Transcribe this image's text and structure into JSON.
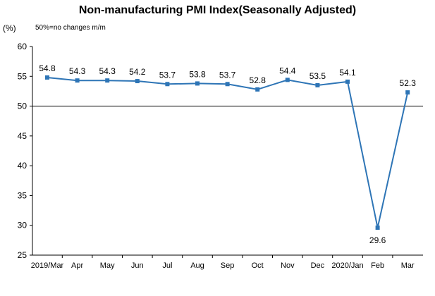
{
  "chart_data": {
    "type": "line",
    "title": "Non-manufacturing PMI Index(Seasonally Adjusted)",
    "ylabel": "(%)",
    "note": "50%=no changes  m/m",
    "ylim": [
      25,
      60
    ],
    "yticks": [
      "25",
      "30",
      "35",
      "40",
      "45",
      "50",
      "55",
      "60"
    ],
    "reference_line": 50,
    "categories": [
      "2019/Mar",
      "Apr",
      "May",
      "Jun",
      "Jul",
      "Aug",
      "Sep",
      "Oct",
      "Nov",
      "Dec",
      "2020/Jan",
      "Feb",
      "Mar"
    ],
    "values": [
      54.8,
      54.3,
      54.3,
      54.2,
      53.7,
      53.8,
      53.7,
      52.8,
      54.4,
      53.5,
      54.1,
      29.6,
      52.3
    ],
    "data_labels": [
      "54.8",
      "54.3",
      "54.3",
      "54.2",
      "53.7",
      "53.8",
      "53.7",
      "52.8",
      "54.4",
      "53.5",
      "54.1",
      "29.6",
      "52.3"
    ],
    "line_color": "#2E75B6",
    "grid": false
  }
}
